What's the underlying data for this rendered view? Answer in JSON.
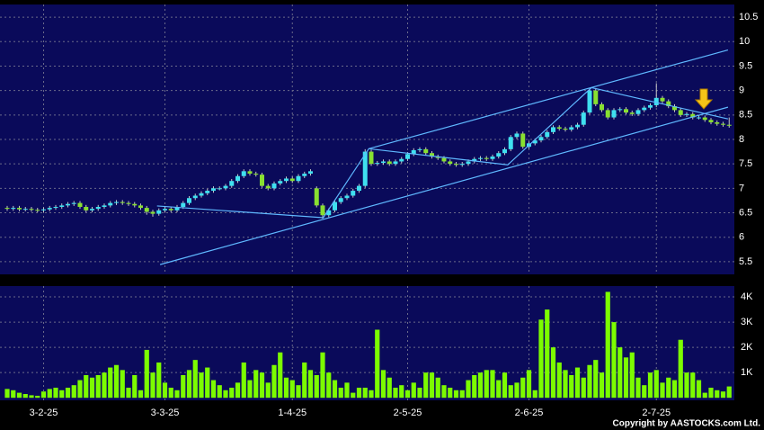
{
  "chart_data": {
    "type": "candlestick",
    "categories": [
      null,
      null,
      null,
      null,
      null,
      null,
      "3-2-25",
      null,
      null,
      null,
      null,
      null,
      null,
      null,
      null,
      null,
      null,
      null,
      null,
      null,
      null,
      null,
      null,
      null,
      null,
      null,
      "3-3-25",
      null,
      null,
      null,
      null,
      null,
      null,
      null,
      null,
      null,
      null,
      null,
      null,
      null,
      null,
      null,
      null,
      null,
      null,
      null,
      null,
      "1-4-25",
      null,
      null,
      null,
      null,
      null,
      null,
      null,
      null,
      null,
      null,
      null,
      null,
      null,
      null,
      null,
      null,
      null,
      null,
      "2-5-25",
      null,
      null,
      null,
      null,
      null,
      null,
      null,
      null,
      null,
      null,
      null,
      null,
      null,
      null,
      null,
      null,
      null,
      null,
      null,
      "2-6-25",
      null,
      null,
      null,
      null,
      null,
      null,
      null,
      null,
      null,
      null,
      null,
      null,
      null,
      null,
      null,
      null,
      null,
      null,
      null,
      null,
      "2-7-25",
      null,
      null,
      null,
      null,
      null,
      null,
      null,
      null,
      null,
      null,
      null,
      null
    ],
    "open": [
      6.6,
      6.58,
      6.6,
      6.57,
      6.58,
      6.56,
      6.55,
      6.57,
      6.6,
      6.62,
      6.65,
      6.68,
      6.7,
      6.62,
      6.55,
      6.58,
      6.62,
      6.65,
      6.7,
      6.72,
      6.7,
      6.68,
      6.65,
      6.6,
      6.52,
      6.48,
      6.55,
      6.58,
      6.55,
      6.62,
      6.7,
      6.8,
      6.85,
      6.9,
      6.95,
      7.0,
      7.0,
      7.05,
      7.15,
      7.25,
      7.35,
      7.3,
      7.28,
      7.05,
      7.0,
      7.1,
      7.15,
      7.2,
      7.15,
      7.25,
      7.3,
      7.0,
      6.65,
      6.45,
      6.55,
      6.72,
      6.8,
      6.85,
      6.95,
      7.05,
      7.75,
      7.5,
      7.52,
      7.55,
      7.5,
      7.55,
      7.6,
      7.7,
      7.78,
      7.8,
      7.72,
      7.65,
      7.62,
      7.55,
      7.5,
      7.48,
      7.5,
      7.55,
      7.6,
      7.62,
      7.6,
      7.65,
      7.72,
      7.8,
      8.05,
      8.12,
      7.85,
      7.92,
      7.98,
      8.05,
      8.15,
      8.25,
      8.22,
      8.2,
      8.25,
      8.3,
      8.55,
      9.0,
      8.72,
      8.6,
      8.45,
      8.6,
      8.62,
      8.55,
      8.52,
      8.6,
      8.65,
      8.7,
      8.85,
      8.78,
      8.68,
      8.6,
      8.5,
      8.52,
      8.45,
      8.45,
      8.4,
      8.35,
      8.32,
      8.3
    ],
    "high": [
      6.64,
      6.64,
      6.64,
      6.62,
      6.62,
      6.6,
      6.61,
      6.64,
      6.66,
      6.69,
      6.72,
      6.74,
      6.74,
      6.66,
      6.62,
      6.66,
      6.69,
      6.74,
      6.76,
      6.76,
      6.74,
      6.72,
      6.69,
      6.64,
      6.56,
      6.59,
      6.62,
      6.62,
      6.66,
      6.74,
      6.84,
      6.89,
      6.94,
      6.99,
      7.04,
      7.04,
      7.09,
      7.19,
      7.29,
      7.39,
      7.39,
      7.34,
      7.32,
      7.09,
      7.14,
      7.19,
      7.24,
      7.24,
      7.29,
      7.34,
      7.39,
      7.04,
      6.69,
      6.59,
      6.76,
      6.84,
      6.89,
      6.99,
      7.09,
      7.8,
      7.79,
      7.56,
      7.59,
      7.59,
      7.59,
      7.64,
      7.74,
      7.82,
      7.84,
      7.84,
      7.76,
      7.69,
      7.66,
      7.59,
      7.54,
      7.54,
      7.59,
      7.64,
      7.66,
      7.66,
      7.69,
      7.76,
      7.84,
      8.09,
      8.16,
      8.16,
      7.96,
      8.02,
      8.09,
      8.19,
      8.29,
      8.29,
      8.26,
      8.29,
      8.34,
      8.59,
      9.05,
      9.04,
      8.76,
      8.64,
      8.64,
      8.66,
      8.66,
      8.59,
      8.64,
      8.69,
      8.74,
      9.15,
      8.89,
      8.82,
      8.72,
      8.64,
      8.56,
      8.56,
      8.49,
      8.49,
      8.44,
      8.39,
      8.36,
      8.45
    ],
    "low": [
      6.54,
      6.54,
      6.53,
      6.53,
      6.52,
      6.51,
      6.51,
      6.53,
      6.56,
      6.58,
      6.61,
      6.64,
      6.58,
      6.51,
      6.51,
      6.54,
      6.58,
      6.61,
      6.66,
      6.66,
      6.64,
      6.61,
      6.56,
      6.46,
      6.42,
      6.44,
      6.51,
      6.51,
      6.51,
      6.58,
      6.66,
      6.76,
      6.81,
      6.86,
      6.91,
      6.96,
      6.96,
      7.01,
      7.11,
      7.21,
      7.26,
      7.24,
      7.01,
      6.96,
      6.96,
      7.06,
      7.11,
      7.11,
      7.11,
      7.21,
      7.26,
      6.61,
      6.38,
      6.41,
      6.51,
      6.68,
      6.76,
      6.81,
      6.91,
      7.01,
      7.46,
      7.46,
      7.48,
      7.46,
      7.46,
      7.51,
      7.56,
      7.66,
      7.74,
      7.68,
      7.61,
      7.58,
      7.51,
      7.46,
      7.44,
      7.44,
      7.46,
      7.51,
      7.56,
      7.56,
      7.56,
      7.61,
      7.68,
      7.76,
      8.01,
      7.81,
      7.81,
      7.88,
      7.94,
      8.01,
      8.11,
      8.18,
      8.16,
      8.16,
      8.21,
      8.26,
      8.51,
      8.68,
      8.56,
      8.41,
      8.41,
      8.56,
      8.51,
      8.48,
      8.48,
      8.56,
      8.61,
      8.66,
      8.74,
      8.64,
      8.56,
      8.46,
      8.46,
      8.41,
      8.41,
      8.36,
      8.31,
      8.28,
      8.26,
      8.24
    ],
    "close": [
      6.58,
      6.6,
      6.57,
      6.58,
      6.56,
      6.55,
      6.57,
      6.6,
      6.62,
      6.65,
      6.68,
      6.7,
      6.62,
      6.55,
      6.58,
      6.62,
      6.65,
      6.7,
      6.72,
      6.7,
      6.68,
      6.65,
      6.6,
      6.52,
      6.48,
      6.55,
      6.58,
      6.55,
      6.62,
      6.7,
      6.8,
      6.85,
      6.9,
      6.95,
      7.0,
      7.0,
      7.05,
      7.15,
      7.25,
      7.35,
      7.3,
      7.28,
      7.05,
      7.0,
      7.1,
      7.15,
      7.2,
      7.15,
      7.25,
      7.3,
      7.35,
      6.65,
      6.45,
      6.55,
      6.72,
      6.8,
      6.85,
      6.95,
      7.05,
      7.75,
      7.5,
      7.52,
      7.55,
      7.5,
      7.55,
      7.6,
      7.7,
      7.78,
      7.8,
      7.72,
      7.65,
      7.62,
      7.55,
      7.5,
      7.48,
      7.5,
      7.55,
      7.6,
      7.62,
      7.6,
      7.65,
      7.72,
      7.8,
      8.05,
      8.12,
      7.85,
      7.92,
      7.98,
      8.05,
      8.15,
      8.25,
      8.22,
      8.2,
      8.25,
      8.3,
      8.55,
      9.0,
      8.72,
      8.6,
      8.45,
      8.6,
      8.62,
      8.55,
      8.52,
      8.6,
      8.65,
      8.7,
      8.85,
      8.78,
      8.68,
      8.6,
      8.5,
      8.52,
      8.45,
      8.45,
      8.4,
      8.35,
      8.32,
      8.3,
      8.28
    ],
    "up_color": "#3fe0f0",
    "down_color": "#88e030",
    "ylim": [
      5.24,
      10.76
    ],
    "yticks": [
      5.5,
      6,
      6.5,
      7,
      7.5,
      8,
      8.5,
      9,
      9.5,
      10,
      10.5
    ],
    "grid": true,
    "trendlines": [
      [
        [
          25.2,
          5.44
        ],
        [
          118.8,
          8.66
        ]
      ],
      [
        [
          59.6,
          7.81
        ],
        [
          118.8,
          9.83
        ]
      ],
      [
        [
          24.7,
          6.64
        ],
        [
          52.1,
          6.4
        ],
        [
          59.6,
          7.81
        ],
        [
          82.5,
          7.48
        ],
        [
          96.3,
          9.06
        ],
        [
          118.8,
          8.42
        ]
      ]
    ],
    "trendline_color": "#5fb8ff",
    "volume": {
      "type": "bar",
      "color": "#7cfc00",
      "values": [
        350,
        300,
        200,
        150,
        100,
        80,
        250,
        350,
        400,
        300,
        400,
        500,
        700,
        900,
        800,
        900,
        1000,
        1200,
        1300,
        1100,
        400,
        900,
        300,
        1900,
        1000,
        1400,
        600,
        400,
        300,
        900,
        1100,
        1500,
        1000,
        1200,
        700,
        500,
        300,
        400,
        600,
        1400,
        700,
        1100,
        1000,
        600,
        1300,
        1800,
        800,
        700,
        500,
        1400,
        1100,
        900,
        1800,
        1000,
        700,
        400,
        600,
        200,
        400,
        400,
        300,
        2700,
        1100,
        800,
        400,
        500,
        300,
        600,
        400,
        1000,
        1000,
        800,
        500,
        400,
        300,
        300,
        700,
        900,
        1000,
        1100,
        1100,
        700,
        1000,
        500,
        600,
        800,
        1100,
        300,
        3100,
        3500,
        2000,
        1400,
        1100,
        900,
        1200,
        800,
        1300,
        1500,
        1000,
        4200,
        3000,
        2000,
        1600,
        1800,
        800,
        500,
        1000,
        1100,
        600,
        800,
        700,
        2300,
        1000,
        1000,
        700,
        200,
        400,
        300,
        250,
        450
      ],
      "ylim": [
        -100,
        4430
      ],
      "yticks": [
        {
          "value": 1000,
          "label": "1K"
        },
        {
          "value": 2000,
          "label": "2K"
        },
        {
          "value": 3000,
          "label": "3K"
        },
        {
          "value": 4000,
          "label": "4K"
        }
      ]
    }
  },
  "footer": "Copyright by AASTOCKS.com Ltd."
}
